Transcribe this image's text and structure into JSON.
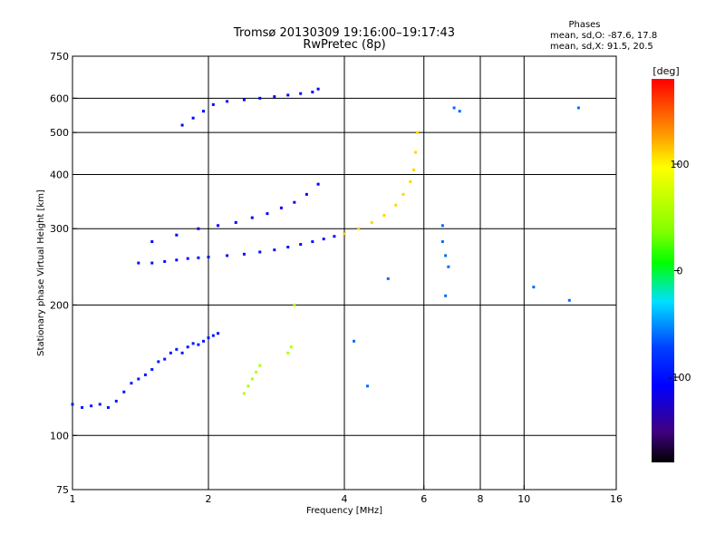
{
  "chart_data": {
    "type": "scatter",
    "title": "Tromsø 20130309  19:16:00–19:17:43",
    "subtitle": "RwPretec (8p)",
    "stats": {
      "heading": "Phases",
      "line_o": "mean, sd,O: -87.6, 17.8",
      "line_x": "mean, sd,X:  91.5, 20.5"
    },
    "xlabel": "Frequency [MHz]",
    "ylabel": "Stationary phase Virtual Height [km]",
    "xscale": "log",
    "yscale": "log",
    "xlim": [
      1,
      16
    ],
    "ylim": [
      75,
      750
    ],
    "x_ticks": [
      1,
      2,
      4,
      6,
      8,
      10,
      16
    ],
    "x_tick_labels": [
      "1",
      "2",
      "4",
      "6",
      "8",
      "10",
      "16"
    ],
    "y_ticks": [
      75,
      100,
      200,
      300,
      400,
      500,
      600,
      750
    ],
    "y_tick_labels": [
      "75",
      "100",
      "200",
      "300",
      "400",
      "500",
      "600",
      "750"
    ],
    "x_grid": [
      2,
      4,
      6,
      8,
      10
    ],
    "y_grid": [
      100,
      200,
      300,
      400,
      500,
      600
    ],
    "colorbar": {
      "label": "[deg]",
      "range": [
        -180,
        180
      ],
      "ticks": [
        -100,
        0,
        100
      ],
      "tick_labels": [
        "-100",
        "0",
        "100"
      ]
    },
    "series": [
      {
        "x": [
          1.0,
          1.05,
          1.1,
          1.15,
          1.2,
          1.25,
          1.3,
          1.35,
          1.4,
          1.45,
          1.5,
          1.55,
          1.6,
          1.65,
          1.7,
          1.75,
          1.8,
          1.85,
          1.9,
          1.95,
          2.0,
          2.05,
          2.1
        ],
        "y": [
          118,
          116,
          117,
          118,
          116,
          120,
          126,
          132,
          135,
          138,
          142,
          148,
          150,
          155,
          158,
          155,
          160,
          163,
          162,
          165,
          168,
          170,
          172
        ],
        "phase": -95
      },
      {
        "x": [
          1.4,
          1.5,
          1.6,
          1.7,
          1.8,
          1.9,
          2.0,
          2.2,
          2.4,
          2.6,
          2.8,
          3.0,
          3.2,
          3.4,
          3.6,
          3.8,
          4.0
        ],
        "y": [
          250,
          250,
          252,
          254,
          256,
          257,
          258,
          260,
          262,
          265,
          268,
          272,
          276,
          280,
          284,
          288,
          292
        ],
        "phase": -100
      },
      {
        "x": [
          4.0,
          4.3,
          4.6,
          4.9,
          5.2,
          5.4,
          5.6,
          5.7,
          5.75,
          5.8
        ],
        "y": [
          292,
          300,
          310,
          322,
          340,
          360,
          385,
          410,
          450,
          500
        ],
        "phase": 110
      },
      {
        "x": [
          1.5,
          1.7,
          1.9,
          2.1,
          2.3,
          2.5,
          2.7,
          2.9,
          3.1,
          3.3,
          3.5
        ],
        "y": [
          280,
          290,
          300,
          305,
          310,
          318,
          325,
          335,
          345,
          360,
          380
        ],
        "phase": -110
      },
      {
        "x": [
          1.75,
          1.85,
          1.95,
          2.05,
          2.2,
          2.4,
          2.6,
          2.8,
          3.0,
          3.2,
          3.4,
          3.5
        ],
        "y": [
          520,
          540,
          560,
          580,
          590,
          595,
          600,
          605,
          610,
          615,
          620,
          630
        ],
        "phase": -105
      },
      {
        "x": [
          2.4,
          2.45,
          2.5,
          2.55,
          2.6,
          3.0,
          3.05,
          3.1
        ],
        "y": [
          125,
          130,
          135,
          140,
          145,
          155,
          160,
          200
        ],
        "phase": 60
      },
      {
        "x": [
          6.6,
          6.6,
          6.7,
          6.8,
          6.7,
          7.0,
          7.2,
          10.5,
          12.6,
          13.2,
          4.5,
          4.2,
          5.0
        ],
        "y": [
          305,
          280,
          260,
          245,
          210,
          570,
          560,
          220,
          205,
          570,
          130,
          165,
          230
        ],
        "phase": -60
      }
    ]
  }
}
